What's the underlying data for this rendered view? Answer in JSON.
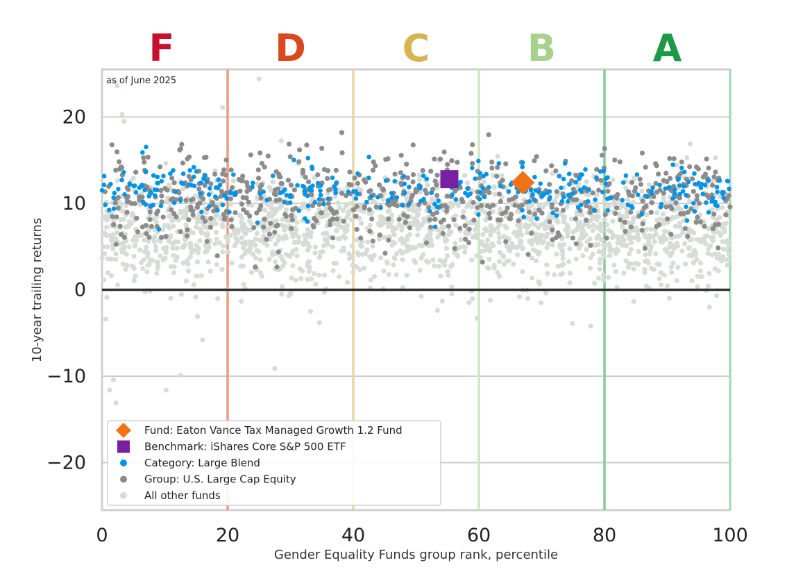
{
  "chart_data": {
    "type": "scatter",
    "date_note": "as of June 2025",
    "xlabel": "Gender Equality Funds group rank, percentile",
    "ylabel": "10-year trailing returns",
    "xlim": [
      0,
      100
    ],
    "ylim": [
      -25.5,
      25.5
    ],
    "x_ticks": [
      0,
      20,
      40,
      60,
      80,
      100
    ],
    "y_ticks": [
      -20,
      -10,
      0,
      10,
      20
    ],
    "y_tick_labels": [
      "−20",
      "−10",
      "0",
      "10",
      "20"
    ],
    "grid": "horizontal",
    "zero_line": true,
    "grade_bands": [
      {
        "grade": "F",
        "center": 9.5,
        "color": "#c8102e"
      },
      {
        "grade": "D",
        "center": 30,
        "color": "#d9481f"
      },
      {
        "grade": "C",
        "center": 50,
        "color": "#d9b251"
      },
      {
        "grade": "B",
        "center": 70,
        "color": "#a9d18e"
      },
      {
        "grade": "A",
        "center": 90,
        "color": "#1c9a48"
      }
    ],
    "boundaries": [
      {
        "x": 20,
        "color": "#ee9b80"
      },
      {
        "x": 40,
        "color": "#ecd5a6"
      },
      {
        "x": 60,
        "color": "#cde7c1"
      },
      {
        "x": 80,
        "color": "#86cb9c"
      },
      {
        "x": 100,
        "color": "#a9d9b5"
      }
    ],
    "legend_position": "bottom-left",
    "series": [
      {
        "name": "Fund: Eaton Vance Tax Managed Growth 1.2 Fund",
        "marker": "diamond",
        "color": "#f47216",
        "points": [
          [
            67,
            12.4
          ]
        ]
      },
      {
        "name": "Benchmark: iShares Core S&P 500 ETF",
        "marker": "square",
        "color": "#7b1fa2",
        "points": [
          [
            55.3,
            12.8
          ]
        ]
      },
      {
        "name": "Category: Large Blend",
        "marker": "dot",
        "color": "#0094e8",
        "distribution": {
          "count": 320,
          "y_center": 11.5,
          "y_spread": 1.6
        }
      },
      {
        "name": "Group: U.S. Large Cap Equity",
        "marker": "dot",
        "color": "#8c8c8c",
        "distribution": {
          "count": 650,
          "y_center": 10.8,
          "y_spread": 2.6
        }
      },
      {
        "name": "All other funds",
        "marker": "dot",
        "color": "#d6dcd6",
        "distribution": {
          "count": 1700,
          "y_center": 6.8,
          "y_spread": 3.0
        }
      }
    ],
    "outliers": [
      [
        2.0,
        24.1
      ],
      [
        2.4,
        23.6
      ],
      [
        19.2,
        21.1
      ],
      [
        25.0,
        24.4
      ],
      [
        3.2,
        20.3
      ],
      [
        0.6,
        -3.4
      ],
      [
        1.2,
        -11.6
      ],
      [
        1.8,
        -10.4
      ],
      [
        2.2,
        -13.1
      ],
      [
        10.2,
        -11.6
      ],
      [
        12.5,
        -9.9
      ],
      [
        27.5,
        -9.1
      ],
      [
        16.0,
        -5.8
      ],
      [
        15.2,
        -3.1
      ],
      [
        33.2,
        -2.5
      ],
      [
        34.6,
        -3.8
      ],
      [
        53.4,
        -2.4
      ],
      [
        59.7,
        -3.3
      ],
      [
        74.9,
        -3.9
      ],
      [
        77.8,
        -4.2
      ],
      [
        96.7,
        -2.0
      ],
      [
        3.5,
        19.5
      ],
      [
        14.6,
        0.6
      ],
      [
        94.2,
        3.1
      ]
    ]
  }
}
